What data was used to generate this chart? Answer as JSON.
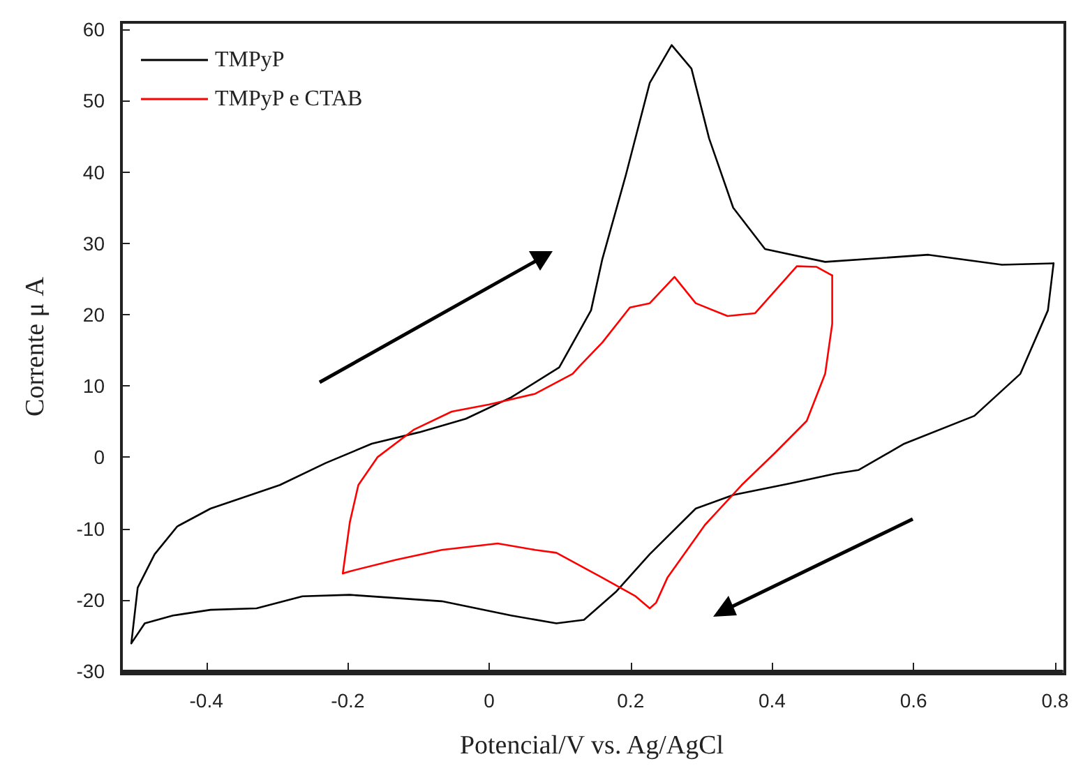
{
  "chart_data": {
    "type": "line",
    "xlabel": "Potencial/V vs. Ag/AgCl",
    "ylabel": "Corrente μ A",
    "xlim": [
      -0.52,
      0.81
    ],
    "ylim": [
      -30,
      61
    ],
    "xticks": [
      -0.4,
      -0.2,
      0,
      0.2,
      0.4,
      0.6,
      0.8
    ],
    "yticks": [
      -30,
      -20,
      -10,
      0,
      10,
      20,
      30,
      40,
      50,
      60
    ],
    "grid": false,
    "legend": "top left",
    "marker": "none",
    "line_style": "solid",
    "series": [
      {
        "name": "TMPyP",
        "color": "#000000",
        "x": [
          -0.506,
          -0.497,
          -0.473,
          -0.441,
          -0.394,
          -0.296,
          -0.231,
          -0.166,
          -0.099,
          -0.033,
          0.031,
          0.099,
          0.144,
          0.16,
          0.193,
          0.227,
          0.258,
          0.286,
          0.311,
          0.345,
          0.39,
          0.475,
          0.621,
          0.725,
          0.798
        ],
        "values": [
          -26.1,
          -18.3,
          -13.6,
          -9.7,
          -7.2,
          -3.9,
          -0.8,
          1.9,
          3.5,
          5.4,
          8.4,
          12.6,
          20.6,
          27.8,
          39.5,
          52.5,
          57.8,
          54.5,
          44.7,
          35.0,
          29.2,
          27.4,
          28.4,
          27.0,
          27.2
        ]
      },
      {
        "color": "#000000",
        "x": [
          0.798,
          0.79,
          0.751,
          0.686,
          0.587,
          0.522,
          0.489,
          0.424,
          0.345,
          0.292,
          0.227,
          0.179,
          0.134,
          0.095,
          0.031,
          -0.067,
          -0.197,
          -0.264,
          -0.329,
          -0.394,
          -0.447,
          -0.487,
          -0.506
        ],
        "values": [
          27.2,
          20.6,
          11.7,
          5.8,
          1.9,
          -1.8,
          -2.3,
          -3.7,
          -5.3,
          -7.2,
          -13.6,
          -18.9,
          -22.8,
          -23.3,
          -22.2,
          -20.2,
          -19.3,
          -19.5,
          -21.2,
          -21.4,
          -22.2,
          -23.3,
          -26.1
        ]
      },
      {
        "name": "TMPyP e CTAB",
        "color": "#ff0000",
        "x": [
          -0.207,
          -0.197,
          -0.185,
          -0.158,
          -0.106,
          -0.053,
          0,
          0.065,
          0.118,
          0.128,
          0.16,
          0.199,
          0.227,
          0.262,
          0.292,
          0.337,
          0.376,
          0.435,
          0.463,
          0.485
        ],
        "values": [
          -16.3,
          -9.1,
          -3.9,
          0,
          3.9,
          6.4,
          7.4,
          8.9,
          11.7,
          12.8,
          16.1,
          21.0,
          21.6,
          25.3,
          21.6,
          19.8,
          20.2,
          26.8,
          26.7,
          25.5
        ]
      },
      {
        "color": "#ff0000",
        "x": [
          0.485,
          0.485,
          0.475,
          0.449,
          0.404,
          0.357,
          0.305,
          0.252,
          0.236,
          0.227,
          0.207,
          0.16,
          0.095,
          0.065,
          0.012,
          -0.067,
          -0.132,
          -0.197,
          -0.207
        ],
        "values": [
          25.5,
          18.7,
          11.7,
          5.1,
          0.6,
          -3.9,
          -9.5,
          -16.9,
          -20.4,
          -21.2,
          -19.5,
          -16.9,
          -13.4,
          -13.0,
          -12.1,
          -13.0,
          -14.4,
          -16.0,
          -16.3
        ]
      }
    ]
  }
}
